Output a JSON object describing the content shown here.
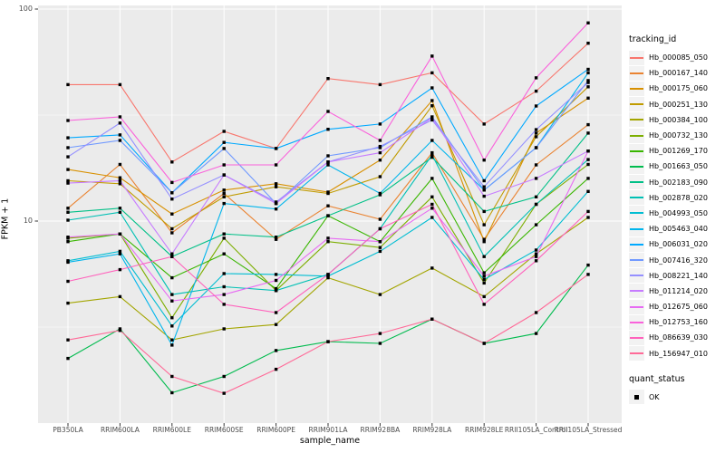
{
  "colors": {
    "panel_bg": "#EBEBEB",
    "grid_major": "#FFFFFF",
    "grid_minor": "#FFFFFF",
    "tick_text": "#4D4D4D",
    "marker": "#000000",
    "legend_key_bg": "#F2F2F2"
  },
  "legend": {
    "tracking_title": "tracking_id",
    "quant_title": "quant_status",
    "quant_items": [
      {
        "label": "OK",
        "marker": "black-square"
      }
    ]
  },
  "chart_data": {
    "type": "line",
    "xlabel": "sample_name",
    "ylabel": "FPKM + 1",
    "yscale": "log10",
    "yticks": [
      10,
      100
    ],
    "ytick_labels": [
      "10",
      "100"
    ],
    "ylim": [
      1.1,
      105
    ],
    "grid": true,
    "legend_position": "right",
    "marker": "black-square",
    "x": [
      "PB350LA",
      "RRIM600LA",
      "RRIM600LE",
      "RRIM600SE",
      "RRIM600PE",
      "RRIM901LA",
      "RRIM928BA",
      "RRIM928LA",
      "RRIM928LE",
      "RRII105LA_Control",
      "RRII105LA_Stressed"
    ],
    "series": [
      {
        "name": "Hb_000085_050",
        "color": "#F8766D",
        "values": [
          44,
          44,
          19,
          26.5,
          22,
          47,
          44,
          50,
          28.7,
          41,
          69
        ]
      },
      {
        "name": "Hb_000167_140",
        "color": "#EA8331",
        "values": [
          11.5,
          18.5,
          8.8,
          13.5,
          8.2,
          11.8,
          10.2,
          21,
          8.2,
          18.4,
          28.5
        ]
      },
      {
        "name": "Hb_000175_060",
        "color": "#D89000",
        "values": [
          17.5,
          16,
          10.8,
          14,
          15,
          13.7,
          19.4,
          37,
          8.0,
          26,
          38
        ]
      },
      {
        "name": "Hb_000251_130",
        "color": "#C09B00",
        "values": [
          15.5,
          15,
          9.2,
          13,
          14.5,
          13.5,
          16.2,
          35,
          9.6,
          25,
          43
        ]
      },
      {
        "name": "Hb_000384_100",
        "color": "#A3A500",
        "values": [
          4.1,
          4.4,
          2.75,
          3.1,
          3.25,
          5.4,
          4.5,
          6.0,
          4.4,
          7.0,
          10.4
        ]
      },
      {
        "name": "Hb_000732_130",
        "color": "#7CAE00",
        "values": [
          8.3,
          8.7,
          3.5,
          8.3,
          4.7,
          8.0,
          7.5,
          13,
          5.1,
          12,
          18.5
        ]
      },
      {
        "name": "Hb_001269_170",
        "color": "#39B600",
        "values": [
          8.0,
          8.7,
          5.4,
          7.0,
          4.8,
          10.6,
          8.0,
          15.9,
          5.7,
          9.6,
          15.9
        ]
      },
      {
        "name": "Hb_001663_050",
        "color": "#00BB4E",
        "values": [
          2.25,
          3.1,
          1.55,
          1.85,
          2.45,
          2.7,
          2.65,
          3.45,
          2.65,
          2.95,
          6.2
        ]
      },
      {
        "name": "Hb_002183_090",
        "color": "#00C087",
        "values": [
          11.0,
          11.5,
          6.8,
          8.7,
          8.4,
          10.6,
          13.3,
          20,
          11.1,
          13,
          26
        ]
      },
      {
        "name": "Hb_002878_020",
        "color": "#00C0B4",
        "values": [
          10.1,
          11.0,
          4.5,
          4.9,
          4.7,
          5.6,
          9.2,
          20.5,
          6.8,
          12,
          19.5
        ]
      },
      {
        "name": "Hb_004993_050",
        "color": "#00BDD2",
        "values": [
          6.5,
          7.2,
          3.2,
          5.65,
          5.6,
          5.5,
          7.2,
          10.4,
          5.3,
          7.3,
          13.8
        ]
      },
      {
        "name": "Hb_005463_040",
        "color": "#00B5EC",
        "values": [
          6.4,
          7.0,
          2.6,
          12.1,
          11.4,
          18.4,
          13.5,
          24,
          14,
          22.2,
          50
        ]
      },
      {
        "name": "Hb_006031_020",
        "color": "#00A9FF",
        "values": [
          24.7,
          25.5,
          13.6,
          23.5,
          22,
          27.1,
          28.7,
          42.5,
          15.5,
          34.9,
          52
        ]
      },
      {
        "name": "Hb_007416_320",
        "color": "#7099FF",
        "values": [
          22.2,
          24,
          13.6,
          22,
          12.1,
          20.3,
          22.2,
          31,
          14,
          22.2,
          46
        ]
      },
      {
        "name": "Hb_008221_140",
        "color": "#9590FF",
        "values": [
          20.1,
          29,
          12.7,
          16.5,
          12.3,
          19,
          22.5,
          30,
          14.5,
          27,
          45
        ]
      },
      {
        "name": "Hb_011214_020",
        "color": "#C77CFF",
        "values": [
          15.1,
          15.5,
          7.0,
          16.5,
          12.1,
          19,
          21,
          30.7,
          13.1,
          15.9,
          21.4
        ]
      },
      {
        "name": "Hb_012675_060",
        "color": "#E76BF3",
        "values": [
          8.4,
          8.7,
          4.2,
          4.5,
          5.25,
          8.3,
          8.0,
          11.5,
          5.5,
          6.8,
          21.4
        ]
      },
      {
        "name": "Hb_012753_160",
        "color": "#FA62DB",
        "values": [
          29.8,
          31,
          15.2,
          18.4,
          18.4,
          32.9,
          24,
          60,
          19.4,
          47.4,
          86
        ]
      },
      {
        "name": "Hb_086639_030",
        "color": "#FF62BC",
        "values": [
          5.2,
          5.9,
          6.8,
          4.05,
          3.7,
          5.6,
          9.2,
          12,
          4.05,
          6.5,
          11.1
        ]
      },
      {
        "name": "Hb_156947_010",
        "color": "#FF6A98",
        "values": [
          2.75,
          3.05,
          1.85,
          1.54,
          2.0,
          2.7,
          2.95,
          3.45,
          2.65,
          3.7,
          5.6
        ]
      }
    ]
  }
}
